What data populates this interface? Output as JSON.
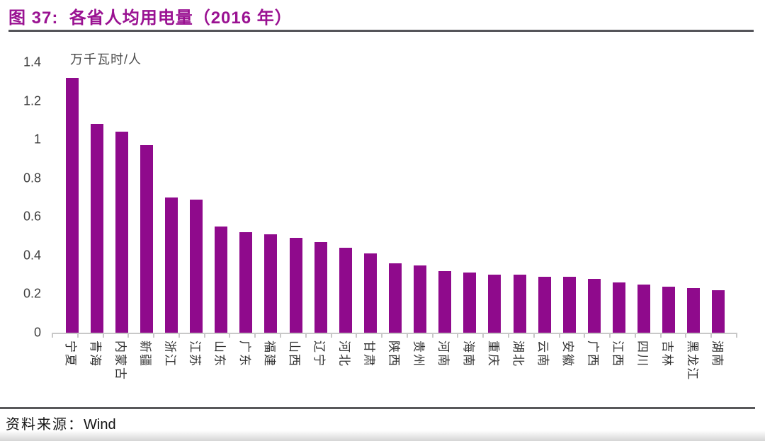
{
  "header": {
    "title": "图 37:  各省人均用电量（2016 年）"
  },
  "chart_data": {
    "type": "bar",
    "title": "各省人均用电量（2016 年）",
    "unit_label": "万千瓦时/人",
    "categories": [
      "宁夏",
      "青海",
      "内蒙古",
      "新疆",
      "浙江",
      "江苏",
      "山东",
      "广东",
      "福建",
      "山西",
      "辽宁",
      "河北",
      "甘肃",
      "陕西",
      "贵州",
      "河南",
      "海南",
      "重庆",
      "湖北",
      "云南",
      "安徽",
      "广西",
      "江西",
      "四川",
      "吉林",
      "黑龙江",
      "湖南"
    ],
    "values": [
      1.32,
      1.08,
      1.04,
      0.97,
      0.7,
      0.69,
      0.55,
      0.52,
      0.51,
      0.49,
      0.47,
      0.44,
      0.41,
      0.36,
      0.35,
      0.32,
      0.31,
      0.3,
      0.3,
      0.29,
      0.29,
      0.28,
      0.26,
      0.25,
      0.24,
      0.23,
      0.22
    ],
    "ylabel": "万千瓦时/人",
    "xlabel": "",
    "ylim": [
      0,
      1.4
    ],
    "y_ticks": [
      "0",
      "0.2",
      "0.4",
      "0.6",
      "0.8",
      "1",
      "1.2",
      "1.4"
    ],
    "grid": false,
    "legend_position": "none",
    "bar_color": "#8F0A8C",
    "x_label_rotation": 90
  },
  "footer": {
    "source_label": "资料来源：",
    "source_value": "Wind"
  },
  "colors": {
    "title_text": "#9A1292",
    "bar": "#8F0A8C",
    "rule": "#58585A",
    "axis_line": "#C8C8C8",
    "axis_text": "#3F3F3F"
  }
}
